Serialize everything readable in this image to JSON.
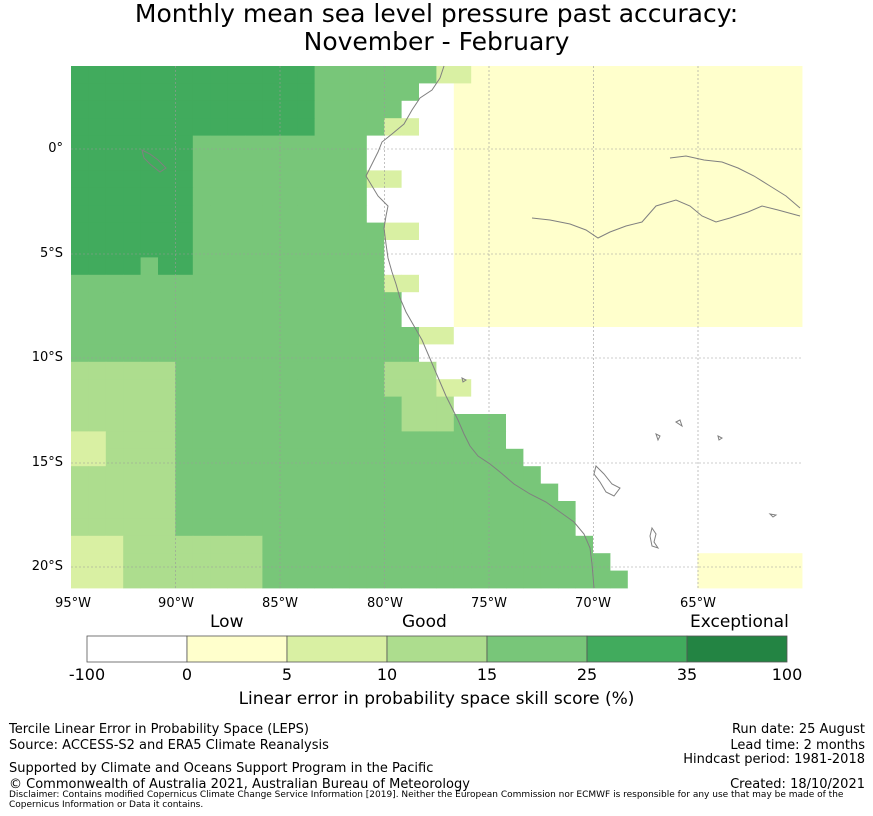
{
  "title": {
    "line1": "Monthly mean sea level pressure past accuracy:",
    "line2": "November - February"
  },
  "map": {
    "lat_labels": [
      "0°",
      "5°S",
      "10°S",
      "15°S",
      "20°S"
    ],
    "lon_labels": [
      "95°W",
      "90°W",
      "85°W",
      "80°W",
      "75°W",
      "70°W",
      "65°W"
    ],
    "category_colors": {
      "lt0": "#ffffff",
      "c0_5": "#ffffcc",
      "c5_10": "#d9f0a3",
      "c10_15": "#addd8e",
      "c15_25": "#78c679",
      "c25_35": "#41ab5d",
      "c35_100": "#238443"
    },
    "coastline_color": "#808080",
    "grid_color": "#9a9a9a"
  },
  "colorbar": {
    "category_labels": {
      "low": "Low",
      "good": "Good",
      "exceptional": "Exceptional"
    },
    "ticks": [
      "-100",
      "0",
      "5",
      "10",
      "15",
      "25",
      "35",
      "100"
    ],
    "colors": [
      "#ffffff",
      "#ffffcc",
      "#d9f0a3",
      "#addd8e",
      "#78c679",
      "#41ab5d",
      "#238443"
    ],
    "title": "Linear error in probability space skill score (%)"
  },
  "footer": {
    "left_line1": "Tercile Linear Error in Probability Space (LEPS)",
    "left_line2": "Source: ACCESS-S2 and ERA5 Climate Reanalysis",
    "support": "Supported by Climate and Oceans Support Program in the Pacific",
    "copyright": "© Commonwealth of Australia 2021, Australian Bureau of Meteorology",
    "run_date": "Run date: 25 August",
    "lead_time": "Lead time: 2 months",
    "hindcast": "Hindcast period: 1981-2018",
    "created": "Created: 18/10/2021",
    "disclaimer": "Disclaimer: Contains modified Copernicus Climate Change Service Information [2019]. Neither the European Commission nor ECMWF is responsible for any use that may be made of the Copernicus Information or Data it contains."
  }
}
